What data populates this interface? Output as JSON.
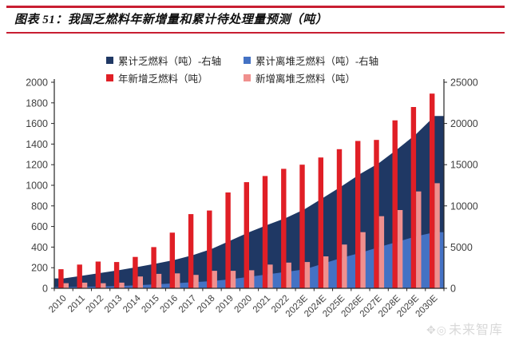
{
  "page": {
    "title": "图表 51：我国乏燃料年新增量和累计待处理量预测（吨）",
    "watermark": {
      "logo_glyphs": "✥◎",
      "text": "未来智库"
    },
    "accent_color": "#c81e32"
  },
  "chart_data": {
    "type": "area+bar combo",
    "title": "我国乏燃料年新增量和累计待处理量预测（吨）",
    "legend_position": "top",
    "grid": false,
    "categories": [
      "2010",
      "2011",
      "2012",
      "2013",
      "2014",
      "2015",
      "2016",
      "2017",
      "2018",
      "2019",
      "2020",
      "2021",
      "2022",
      "2023E",
      "2024E",
      "2025E",
      "2026E",
      "2027E",
      "2028E",
      "2029E",
      "2030E"
    ],
    "left_axis": {
      "min": 0,
      "max": 2000,
      "ticks": [
        0,
        200,
        400,
        600,
        800,
        1000,
        1200,
        1400,
        1600,
        1800,
        2000
      ]
    },
    "right_axis": {
      "min": 0,
      "max": 25000,
      "ticks": [
        0,
        5000,
        10000,
        15000,
        20000,
        25000
      ]
    },
    "series": [
      {
        "name": "累计乏燃料（吨）-右轴",
        "type": "area",
        "axis": "right",
        "color": "#1f3864",
        "values": [
          1200,
          1530,
          1860,
          2200,
          2600,
          3000,
          3450,
          4050,
          4800,
          5800,
          6800,
          7700,
          8550,
          9600,
          11000,
          12400,
          13900,
          15200,
          16900,
          18700,
          20900
        ]
      },
      {
        "name": "累计离堆乏燃料（吨）-右轴",
        "type": "area",
        "axis": "right",
        "color": "#4472c4",
        "values": [
          150,
          180,
          220,
          260,
          380,
          480,
          600,
          750,
          870,
          1100,
          1400,
          1700,
          2000,
          2300,
          3000,
          3700,
          4300,
          5000,
          5650,
          6300,
          6800
        ]
      },
      {
        "name": "年新增乏燃料（吨）",
        "type": "bar",
        "axis": "left",
        "color": "#e01f26",
        "values": [
          185,
          230,
          260,
          255,
          305,
          400,
          540,
          720,
          755,
          930,
          1030,
          1090,
          1160,
          1200,
          1270,
          1350,
          1430,
          1440,
          1630,
          1760,
          1890
        ]
      },
      {
        "name": "新增离堆乏燃料（吨）",
        "type": "bar",
        "axis": "left",
        "color": "#f0908e",
        "values": [
          50,
          55,
          50,
          55,
          115,
          140,
          145,
          130,
          170,
          170,
          175,
          230,
          250,
          255,
          310,
          425,
          545,
          700,
          760,
          940,
          1020
        ]
      }
    ]
  }
}
